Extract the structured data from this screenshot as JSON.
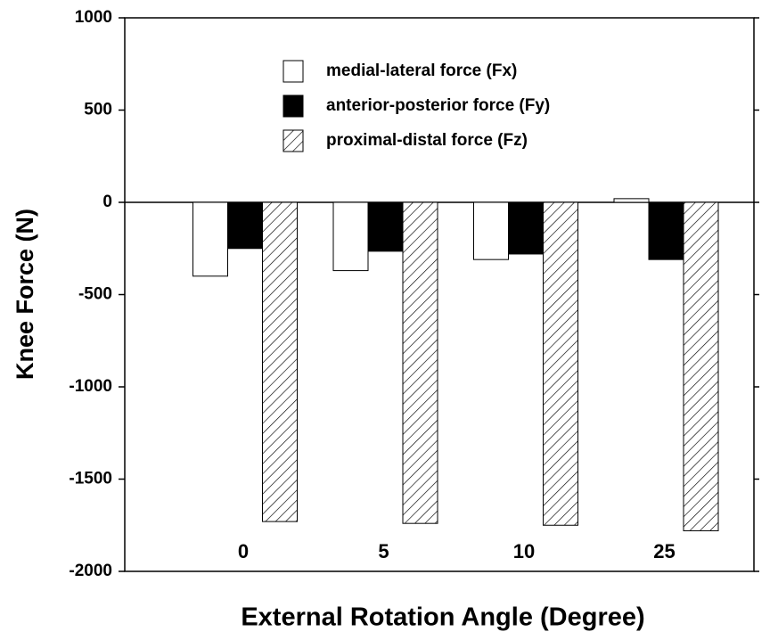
{
  "chart_data": {
    "type": "bar",
    "x_label": "External Rotation Angle (Degree)",
    "y_label": "Knee Force (N)",
    "categories": [
      "0",
      "5",
      "10",
      "25"
    ],
    "series": [
      {
        "name": "medial-lateral force (Fx)",
        "color": "#ffffff",
        "values": [
          -400,
          -370,
          -310,
          20
        ]
      },
      {
        "name": "anterior-posterior force (Fy)",
        "color": "#000000",
        "values": [
          -250,
          -265,
          -280,
          -310
        ]
      },
      {
        "name": "proximal-distal force (Fz)",
        "color": "hatch",
        "values": [
          -1730,
          -1740,
          -1750,
          -1780
        ]
      }
    ],
    "ylim": [
      -2000,
      1000
    ],
    "yticks": [
      -2000,
      -1500,
      -1000,
      -500,
      0,
      500,
      1000
    ],
    "legend": "top"
  }
}
